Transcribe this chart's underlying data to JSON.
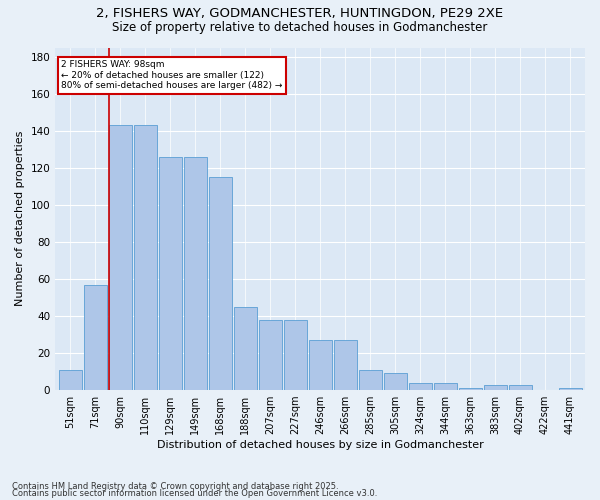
{
  "title_line1": "2, FISHERS WAY, GODMANCHESTER, HUNTINGDON, PE29 2XE",
  "title_line2": "Size of property relative to detached houses in Godmanchester",
  "xlabel": "Distribution of detached houses by size in Godmanchester",
  "ylabel": "Number of detached properties",
  "bin_labels": [
    "51sqm",
    "71sqm",
    "90sqm",
    "110sqm",
    "129sqm",
    "149sqm",
    "168sqm",
    "188sqm",
    "207sqm",
    "227sqm",
    "246sqm",
    "266sqm",
    "285sqm",
    "305sqm",
    "324sqm",
    "344sqm",
    "363sqm",
    "383sqm",
    "402sqm",
    "422sqm",
    "441sqm"
  ],
  "bar_values": [
    11,
    57,
    143,
    143,
    126,
    126,
    115,
    45,
    38,
    38,
    27,
    27,
    11,
    9,
    4,
    4,
    1,
    3,
    3,
    0,
    1
  ],
  "bar_color": "#aec6e8",
  "bar_edge_color": "#5a9fd4",
  "vline_x": 2,
  "vline_label": "2 FISHERS WAY: 98sqm",
  "annotation_line1": "← 20% of detached houses are smaller (122)",
  "annotation_line2": "80% of semi-detached houses are larger (482) →",
  "annotation_box_color": "#ffffff",
  "annotation_box_edge": "#cc0000",
  "vline_color": "#cc0000",
  "ylim": [
    0,
    185
  ],
  "yticks": [
    0,
    20,
    40,
    60,
    80,
    100,
    120,
    140,
    160,
    180
  ],
  "footer_line1": "Contains HM Land Registry data © Crown copyright and database right 2025.",
  "footer_line2": "Contains public sector information licensed under the Open Government Licence v3.0.",
  "bg_color": "#e8f0f8",
  "plot_bg_color": "#dce8f5"
}
